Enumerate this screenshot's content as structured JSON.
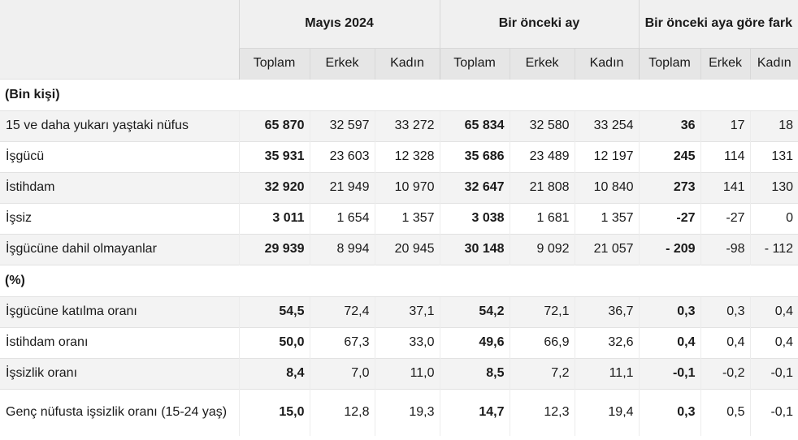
{
  "header": {
    "groups": [
      "Mayıs 2024",
      "Bir önceki ay",
      "Bir önceki aya göre fark"
    ],
    "subheaders": [
      "Toplam",
      "Erkek",
      "Kadın"
    ]
  },
  "sections": [
    {
      "title": "(Bin kişi)",
      "rows": [
        {
          "label": "15 ve daha yukarı yaştaki nüfus",
          "values": [
            "65 870",
            "32 597",
            "33 272",
            "65 834",
            "32 580",
            "33 254",
            "36",
            "17",
            "18"
          ]
        },
        {
          "label": "İşgücü",
          "values": [
            "35 931",
            "23 603",
            "12 328",
            "35 686",
            "23 489",
            "12 197",
            "245",
            "114",
            "131"
          ]
        },
        {
          "label": "İstihdam",
          "values": [
            "32 920",
            "21 949",
            "10 970",
            "32 647",
            "21 808",
            "10 840",
            "273",
            "141",
            "130"
          ]
        },
        {
          "label": "İşsiz",
          "values": [
            "3 011",
            "1 654",
            "1 357",
            "3 038",
            "1 681",
            "1 357",
            "-27",
            "-27",
            "0"
          ]
        },
        {
          "label": "İşgücüne dahil olmayanlar",
          "values": [
            "29 939",
            "8 994",
            "20 945",
            "30 148",
            "9 092",
            "21 057",
            "- 209",
            "-98",
            "- 112"
          ]
        }
      ]
    },
    {
      "title": "(%)",
      "rows": [
        {
          "label": "İşgücüne katılma oranı",
          "values": [
            "54,5",
            "72,4",
            "37,1",
            "54,2",
            "72,1",
            "36,7",
            "0,3",
            "0,3",
            "0,4"
          ]
        },
        {
          "label": "İstihdam oranı",
          "values": [
            "50,0",
            "67,3",
            "33,0",
            "49,6",
            "66,9",
            "32,6",
            "0,4",
            "0,4",
            "0,4"
          ]
        },
        {
          "label": "İşsizlik oranı",
          "values": [
            "8,4",
            "7,0",
            "11,0",
            "8,5",
            "7,2",
            "11,1",
            "-0,1",
            "-0,2",
            "-0,1"
          ]
        },
        {
          "label": "Genç nüfusta işsizlik oranı (15-24 yaş)",
          "values": [
            "15,0",
            "12,8",
            "19,3",
            "14,7",
            "12,3",
            "19,4",
            "0,3",
            "0,5",
            "-0,1"
          ]
        }
      ]
    }
  ]
}
